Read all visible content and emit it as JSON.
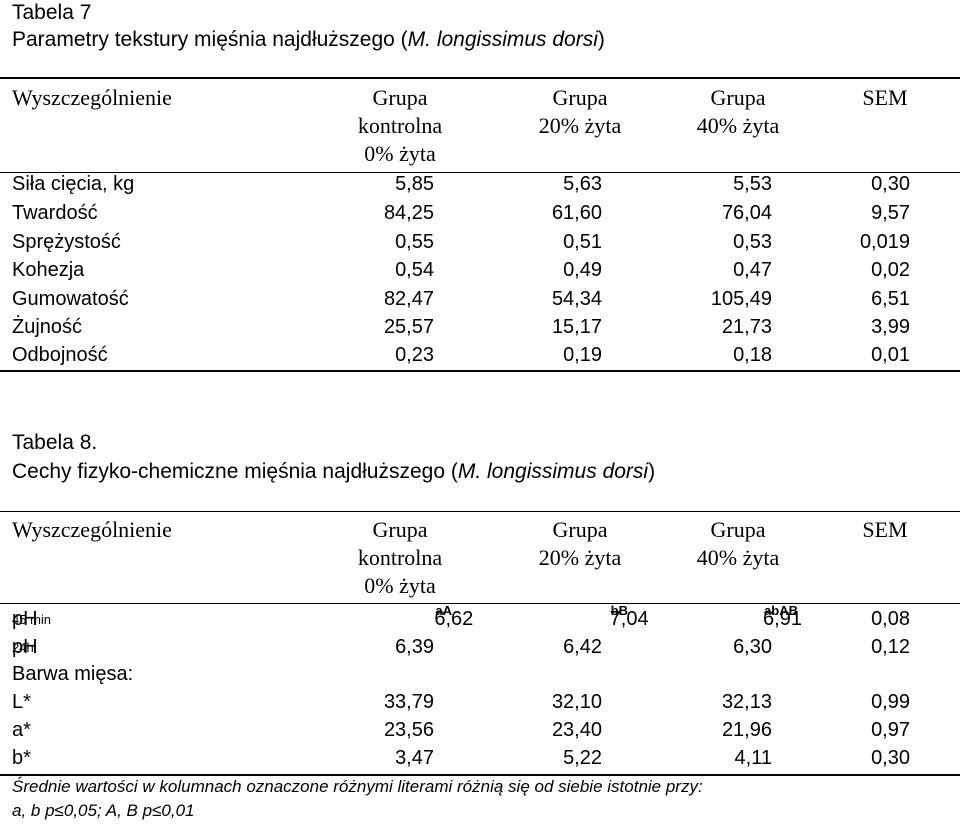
{
  "table7": {
    "number": "Tabela 7",
    "title_prefix": "Parametry tekstury mięśnia najdłuższego (",
    "title_latin": "M. longissimus dorsi",
    "title_suffix": ")",
    "headers": {
      "spec": "Wyszczególnienie",
      "g1": [
        "Grupa",
        "kontrolna",
        "0% żyta"
      ],
      "g2": [
        "Grupa",
        "20% żyta"
      ],
      "g3": [
        "Grupa",
        "40% żyta"
      ],
      "sem": "SEM"
    },
    "rows": [
      {
        "label": "Siła cięcia, kg",
        "v1": "5,85",
        "v2": "5,63",
        "v3": "5,53",
        "sem": "0,30"
      },
      {
        "label": "Twardość",
        "v1": "84,25",
        "v2": "61,60",
        "v3": "76,04",
        "sem": "9,57"
      },
      {
        "label": "Sprężystość",
        "v1": "0,55",
        "v2": "0,51",
        "v3": "0,53",
        "sem": "0,019"
      },
      {
        "label": "Kohezja",
        "v1": "0,54",
        "v2": "0,49",
        "v3": "0,47",
        "sem": "0,02"
      },
      {
        "label": "Gumowatość",
        "v1": "82,47",
        "v2": "54,34",
        "v3": "105,49",
        "sem": "6,51"
      },
      {
        "label": "Żujność",
        "v1": "25,57",
        "v2": "15,17",
        "v3": "21,73",
        "sem": "3,99"
      },
      {
        "label": "Odbojność",
        "v1": "0,23",
        "v2": "0,19",
        "v3": "0,18",
        "sem": "0,01"
      }
    ]
  },
  "table8": {
    "number": "Tabela 8.",
    "title_prefix": "Cechy fizyko-chemiczne mięśnia najdłuższego (",
    "title_latin": "M. longissimus dorsi",
    "title_suffix": ")",
    "headers": {
      "spec": "Wyszczególnienie",
      "g1": [
        "Grupa",
        "kontrolna",
        "0% żyta"
      ],
      "g2": [
        "Grupa",
        "20% żyta"
      ],
      "g3": [
        "Grupa",
        "40% żyta"
      ],
      "sem": "SEM"
    },
    "rows": {
      "ph45": {
        "label": "pH",
        "sub": "45 min",
        "v1": "6,62",
        "s1": "aA",
        "v2": "7,04",
        "s2": "bB",
        "v3": "6,91",
        "s3": "abAB",
        "sem": "0,08"
      },
      "ph24": {
        "label": "pH",
        "sub": "24h",
        "v1": "6,39",
        "v2": "6,42",
        "v3": "6,30",
        "sem": "0,12"
      },
      "colour_heading": "Barwa mięsa:",
      "L": {
        "label": "L*",
        "v1": "33,79",
        "v2": "32,10",
        "v3": "32,13",
        "sem": "0,99"
      },
      "a": {
        "label": "a*",
        "v1": "23,56",
        "v2": "23,40",
        "v3": "21,96",
        "sem": "0,97"
      },
      "b": {
        "label": "b*",
        "v1": "3,47",
        "v2": "5,22",
        "v3": "4,11",
        "sem": "0,30"
      }
    },
    "footnote": [
      "Średnie wartości w kolumnach oznaczone różnymi literami różnią się od siebie istotnie przy:",
      "a, b  p≤0,05; A, B p≤0,01"
    ]
  }
}
